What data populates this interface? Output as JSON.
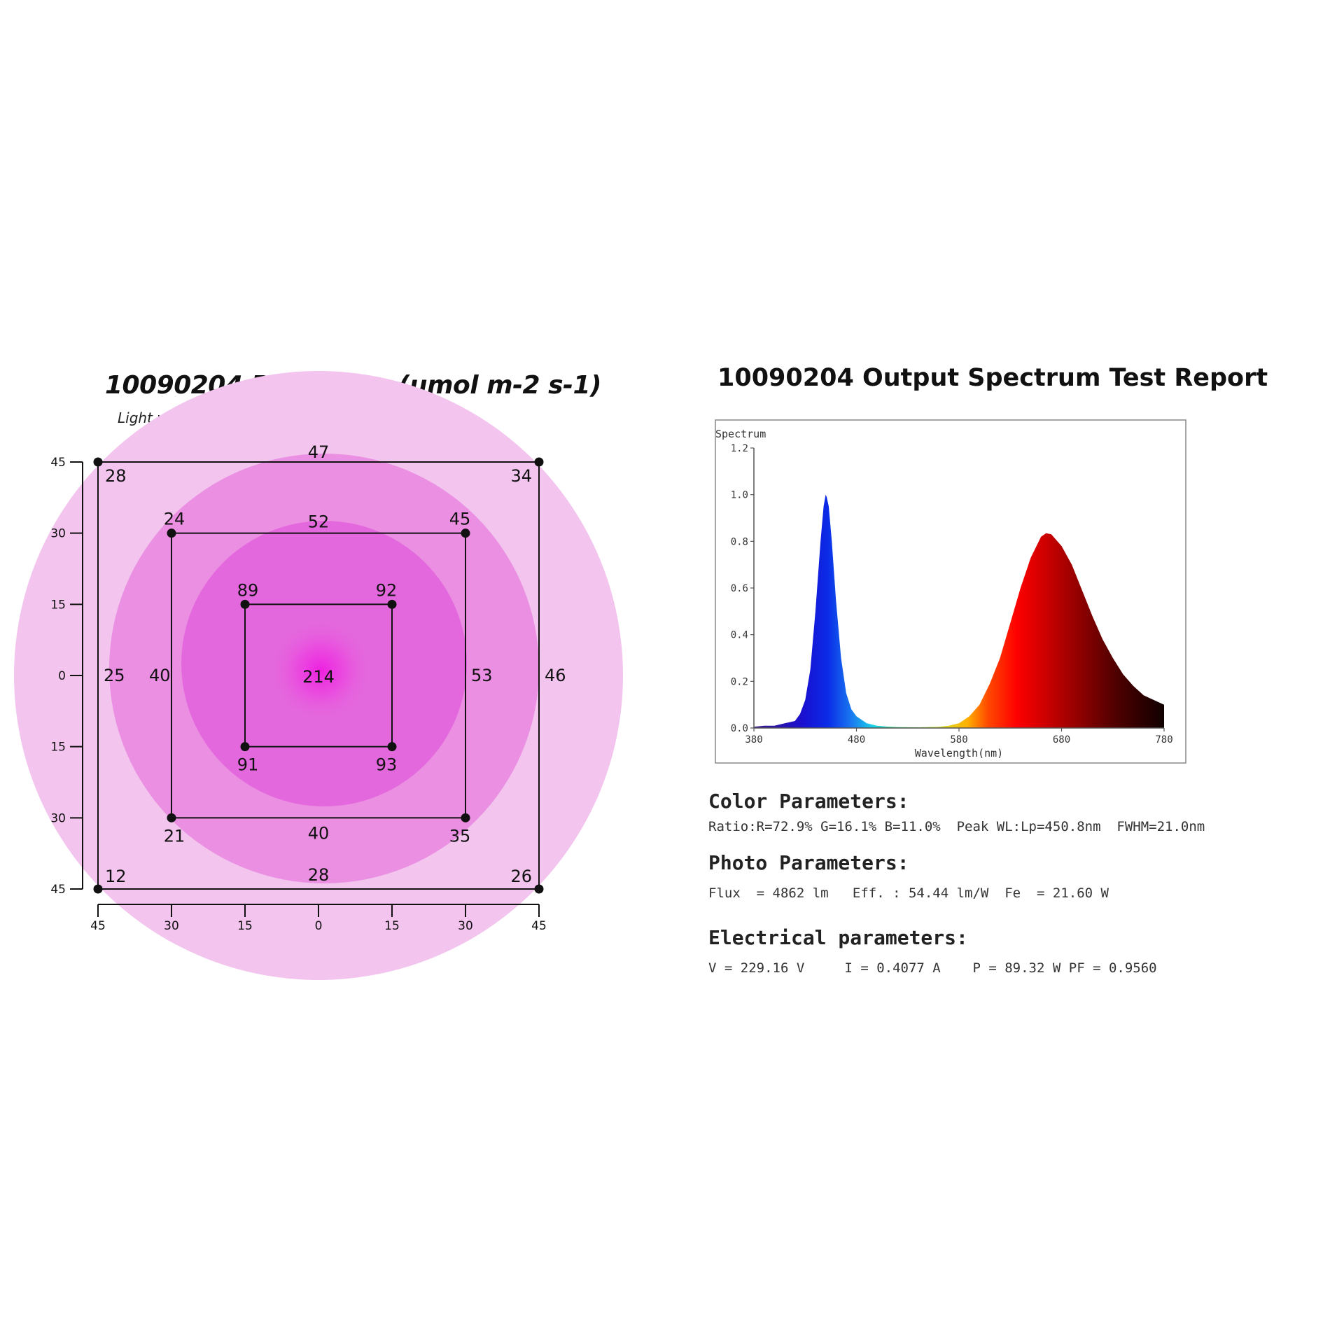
{
  "par_chart": {
    "title": "10090204 PAR Value (umol m-2 s-1)",
    "subtitle": "Light was posilioned at 24\" heigt",
    "colors": {
      "outer": "#f2c4ee",
      "mid": "#eb8fe2",
      "inner": "#e468dd",
      "center": "#ee1fe0"
    },
    "y_ticks": [
      "45",
      "30",
      "15",
      "0",
      "15",
      "30",
      "45"
    ],
    "x_ticks": [
      "45",
      "30",
      "15",
      "0",
      "15",
      "30",
      "45"
    ]
  },
  "chart_data": [
    {
      "type": "heatmap",
      "title": "10090204 PAR Value (umol m-2 s-1)",
      "subtitle": "Light was posilioned at 24\" heigt",
      "x_ticks": [
        -45,
        -30,
        -15,
        0,
        15,
        30,
        45
      ],
      "y_ticks": [
        45,
        30,
        15,
        0,
        -15,
        -30,
        -45
      ],
      "xlim": [
        -45,
        45
      ],
      "ylim": [
        -45,
        45
      ],
      "points": [
        {
          "x": 0,
          "y": 0,
          "value": 214
        },
        {
          "x": -15,
          "y": 15,
          "value": 89
        },
        {
          "x": 15,
          "y": 15,
          "value": 92
        },
        {
          "x": -15,
          "y": -15,
          "value": 91
        },
        {
          "x": 15,
          "y": -15,
          "value": 93
        },
        {
          "x": -30,
          "y": 30,
          "value": 24
        },
        {
          "x": 0,
          "y": 30,
          "value": 52
        },
        {
          "x": 30,
          "y": 30,
          "value": 45
        },
        {
          "x": -30,
          "y": 0,
          "value": 40
        },
        {
          "x": 30,
          "y": 0,
          "value": 53
        },
        {
          "x": -30,
          "y": -30,
          "value": 21
        },
        {
          "x": 0,
          "y": -30,
          "value": 40
        },
        {
          "x": 30,
          "y": -30,
          "value": 35
        },
        {
          "x": -45,
          "y": 45,
          "value": 28
        },
        {
          "x": 0,
          "y": 45,
          "value": 47
        },
        {
          "x": 45,
          "y": 45,
          "value": 34
        },
        {
          "x": -45,
          "y": 0,
          "value": 25
        },
        {
          "x": 45,
          "y": 0,
          "value": 46
        },
        {
          "x": -45,
          "y": -45,
          "value": 12
        },
        {
          "x": 0,
          "y": -45,
          "value": 28
        },
        {
          "x": 45,
          "y": -45,
          "value": 26
        }
      ]
    },
    {
      "type": "area",
      "title": "10090204 Output Spectrum Test Report",
      "ylabel": "Spectrum",
      "xlabel": "Wavelength(nm)",
      "xlim": [
        380,
        780
      ],
      "ylim": [
        0,
        1.2
      ],
      "x_ticks": [
        380,
        480,
        580,
        680,
        780
      ],
      "x_tick_labels": [
        "380",
        "480",
        "580",
        "680",
        "780"
      ],
      "y_ticks": [
        0,
        0.2,
        0.4,
        0.6,
        0.8,
        1.0,
        1.2
      ],
      "y_tick_labels": [
        "0.0",
        "0.2",
        "0.4",
        "0.6",
        "0.8",
        "1.0",
        "1.2"
      ],
      "x": [
        380,
        390,
        400,
        410,
        420,
        425,
        430,
        435,
        440,
        445,
        448,
        450,
        451,
        453,
        456,
        460,
        465,
        470,
        475,
        480,
        490,
        500,
        510,
        520,
        540,
        560,
        570,
        580,
        590,
        600,
        610,
        620,
        630,
        640,
        650,
        660,
        665,
        670,
        680,
        690,
        700,
        710,
        720,
        730,
        740,
        750,
        760,
        770,
        780
      ],
      "y": [
        0.005,
        0.01,
        0.01,
        0.02,
        0.03,
        0.06,
        0.12,
        0.25,
        0.5,
        0.8,
        0.95,
        1.0,
        0.99,
        0.95,
        0.8,
        0.55,
        0.3,
        0.15,
        0.08,
        0.05,
        0.02,
        0.01,
        0.006,
        0.004,
        0.003,
        0.005,
        0.01,
        0.02,
        0.05,
        0.1,
        0.19,
        0.3,
        0.45,
        0.6,
        0.73,
        0.82,
        0.835,
        0.83,
        0.78,
        0.7,
        0.59,
        0.48,
        0.38,
        0.3,
        0.23,
        0.18,
        0.14,
        0.12,
        0.1
      ]
    }
  ],
  "spectrum_report": {
    "title": "10090204 Output Spectrum Test Report",
    "color_heading": "Color Parameters:",
    "color_line": "Ratio:R=72.9% G=16.1% B=11.0%  Peak WL:Lp=450.8nm  FWHM=21.0nm",
    "photo_heading": "Photo Parameters:",
    "photo_line": "Flux  = 4862 lm   Eff. : 54.44 lm/W  Fe  = 21.60 W",
    "electrical_heading": "Electrical parameters:",
    "electrical_line": "V = 229.16 V     I = 0.4077 A    P = 89.32 W PF = 0.9560"
  }
}
